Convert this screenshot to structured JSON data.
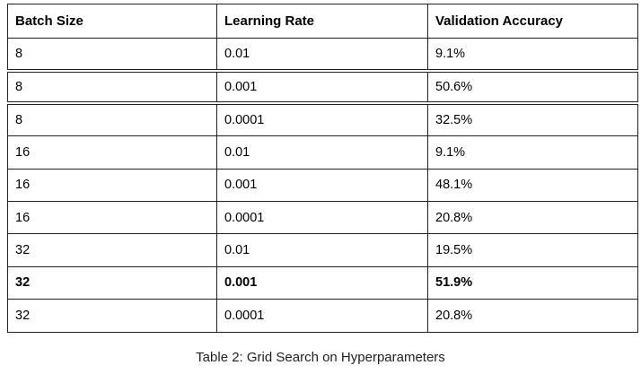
{
  "table": {
    "headers": [
      "Batch Size",
      "Learning Rate",
      "Validation Accuracy"
    ],
    "rows": [
      [
        "8",
        "0.01",
        "9.1%"
      ],
      [
        "8",
        "0.001",
        "50.6%"
      ],
      [
        "8",
        "0.0001",
        "32.5%"
      ],
      [
        "16",
        "0.01",
        "9.1%"
      ],
      [
        "16",
        "0.001",
        "48.1%"
      ],
      [
        "16",
        "0.0001",
        "20.8%"
      ],
      [
        "32",
        "0.01",
        "19.5%"
      ],
      [
        "32",
        "0.001",
        "51.9%"
      ],
      [
        "32",
        "0.0001",
        "20.8%"
      ]
    ],
    "highlighted_row": 7
  },
  "caption": "Table 2: Grid Search on Hyperparameters"
}
